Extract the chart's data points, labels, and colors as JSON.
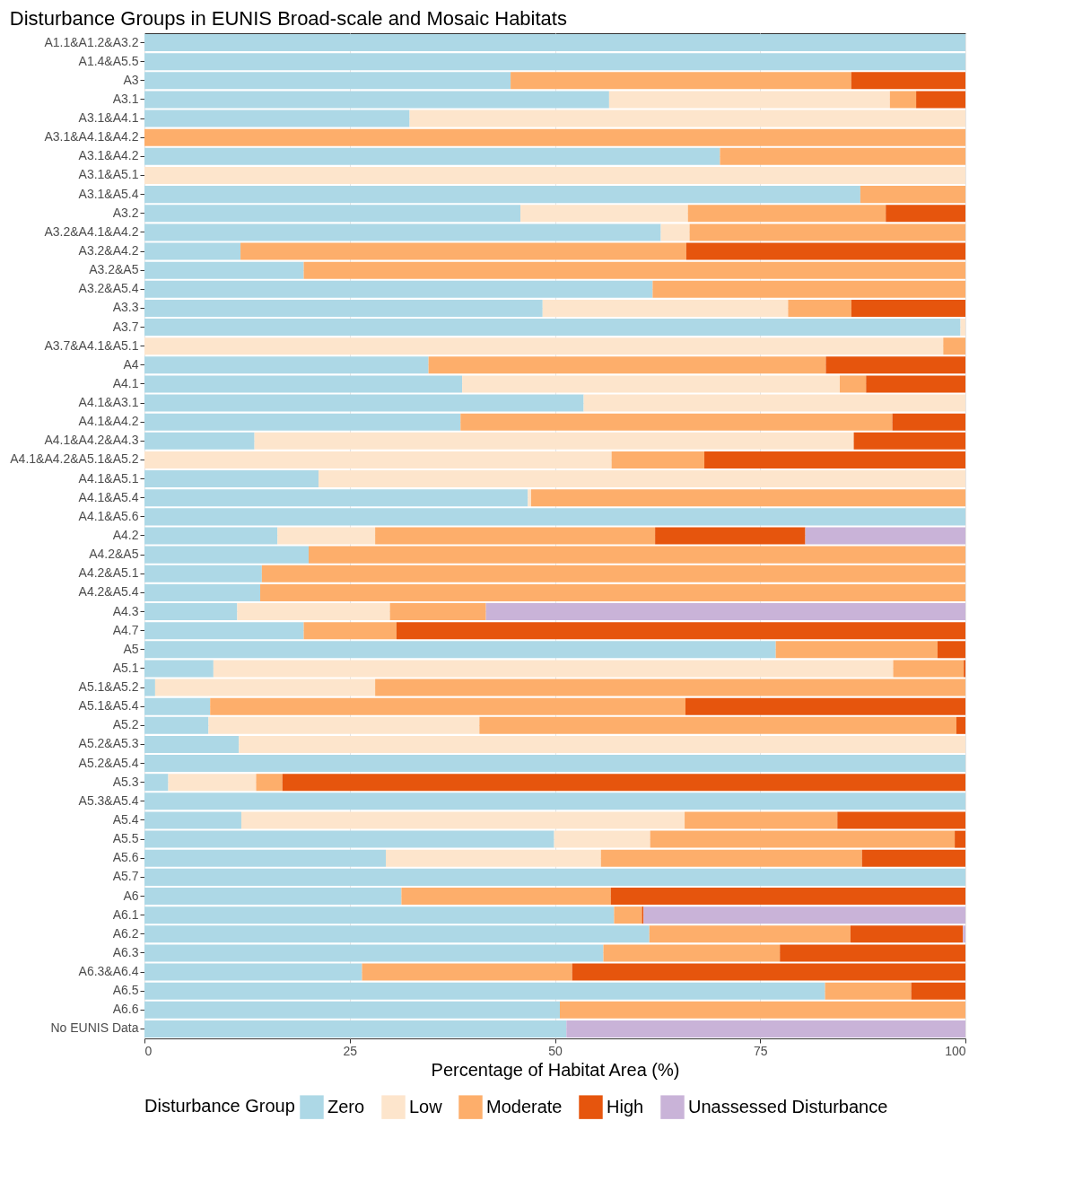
{
  "chart_data": {
    "type": "bar",
    "orientation": "horizontal",
    "stacked": true,
    "title": "Disturbance Groups in EUNIS Broad-scale and Mosaic Habitats",
    "xlabel": "Percentage of Habitat Area (%)",
    "legend_title": "Disturbance Group",
    "legend": "bottom",
    "grid": true,
    "xlim": [
      0,
      100
    ],
    "xticks": [
      0,
      25,
      50,
      75,
      100
    ],
    "categories": [
      "A1.1&A1.2&A3.2",
      "A1.4&A5.5",
      "A3",
      "A3.1",
      "A3.1&A4.1",
      "A3.1&A4.1&A4.2",
      "A3.1&A4.2",
      "A3.1&A5.1",
      "A3.1&A5.4",
      "A3.2",
      "A3.2&A4.1&A4.2",
      "A3.2&A4.2",
      "A3.2&A5",
      "A3.2&A5.4",
      "A3.3",
      "A3.7",
      "A3.7&A4.1&A5.1",
      "A4",
      "A4.1",
      "A4.1&A3.1",
      "A4.1&A4.2",
      "A4.1&A4.2&A4.3",
      "A4.1&A4.2&A5.1&A5.2",
      "A4.1&A5.1",
      "A4.1&A5.4",
      "A4.1&A5.6",
      "A4.2",
      "A4.2&A5",
      "A4.2&A5.1",
      "A4.2&A5.4",
      "A4.3",
      "A4.7",
      "A5",
      "A5.1",
      "A5.1&A5.2",
      "A5.1&A5.4",
      "A5.2",
      "A5.2&A5.3",
      "A5.2&A5.4",
      "A5.3",
      "A5.3&A5.4",
      "A5.4",
      "A5.5",
      "A5.6",
      "A5.7",
      "A6",
      "A6.1",
      "A6.2",
      "A6.3",
      "A6.3&A6.4",
      "A6.5",
      "A6.6",
      "No EUNIS Data"
    ],
    "series": [
      {
        "name": "Zero",
        "color": "#add8e6",
        "values": [
          100,
          100,
          44.6,
          56.6,
          32.3,
          null,
          70.1,
          null,
          87.2,
          45.8,
          62.9,
          11.7,
          19.4,
          61.9,
          48.5,
          99.4,
          null,
          34.6,
          38.7,
          53.5,
          38.5,
          13.4,
          null,
          21.2,
          46.7,
          100,
          16.2,
          20.0,
          14.3,
          14.1,
          11.3,
          19.4,
          76.9,
          8.4,
          1.3,
          8.0,
          7.8,
          11.5,
          100,
          2.9,
          100,
          11.8,
          49.9,
          29.4,
          100,
          31.3,
          57.2,
          61.5,
          55.9,
          26.5,
          82.9,
          50.6,
          51.4
        ]
      },
      {
        "name": "Low",
        "color": "#fde5cc",
        "values": [
          null,
          null,
          null,
          34.2,
          67.7,
          null,
          null,
          100,
          null,
          20.4,
          3.5,
          null,
          null,
          null,
          29.9,
          0.6,
          97.3,
          null,
          46.0,
          46.5,
          null,
          73.0,
          56.9,
          78.8,
          0.4,
          null,
          11.9,
          null,
          null,
          null,
          18.6,
          null,
          null,
          82.8,
          26.8,
          null,
          33.0,
          88.5,
          null,
          10.7,
          null,
          54.0,
          11.7,
          26.2,
          null,
          null,
          null,
          null,
          null,
          null,
          null,
          null,
          null
        ]
      },
      {
        "name": "Moderate",
        "color": "#fdae6b",
        "values": [
          null,
          null,
          41.5,
          3.2,
          null,
          100,
          29.9,
          null,
          12.8,
          24.1,
          33.6,
          54.3,
          80.6,
          38.1,
          7.7,
          null,
          2.7,
          48.4,
          3.2,
          null,
          52.6,
          null,
          11.3,
          null,
          52.9,
          null,
          34.1,
          80.0,
          85.7,
          85.9,
          11.7,
          11.3,
          19.7,
          8.6,
          71.9,
          57.9,
          58.1,
          null,
          null,
          3.2,
          null,
          18.6,
          37.1,
          31.8,
          null,
          25.5,
          3.4,
          24.5,
          21.5,
          25.6,
          10.5,
          49.4,
          null
        ]
      },
      {
        "name": "High",
        "color": "#e6550d",
        "values": [
          null,
          null,
          13.9,
          6.0,
          null,
          null,
          null,
          null,
          null,
          9.7,
          null,
          34.0,
          null,
          null,
          13.9,
          null,
          null,
          17.0,
          12.1,
          null,
          8.9,
          13.6,
          31.8,
          null,
          null,
          null,
          18.3,
          null,
          null,
          null,
          null,
          69.3,
          3.4,
          0.2,
          null,
          34.1,
          1.1,
          null,
          null,
          83.2,
          null,
          15.6,
          1.3,
          12.6,
          null,
          43.2,
          0.2,
          13.7,
          22.6,
          47.9,
          6.6,
          null,
          null
        ]
      },
      {
        "name": "Unassessed Disturbance",
        "color": "#c9b3d8",
        "values": [
          null,
          null,
          null,
          null,
          null,
          null,
          null,
          null,
          null,
          null,
          null,
          null,
          null,
          null,
          null,
          null,
          null,
          null,
          null,
          null,
          null,
          null,
          null,
          null,
          null,
          null,
          19.5,
          null,
          null,
          null,
          58.4,
          null,
          null,
          null,
          null,
          null,
          null,
          null,
          null,
          null,
          null,
          null,
          null,
          null,
          null,
          null,
          39.2,
          0.3,
          null,
          null,
          null,
          null,
          48.6
        ]
      }
    ]
  }
}
